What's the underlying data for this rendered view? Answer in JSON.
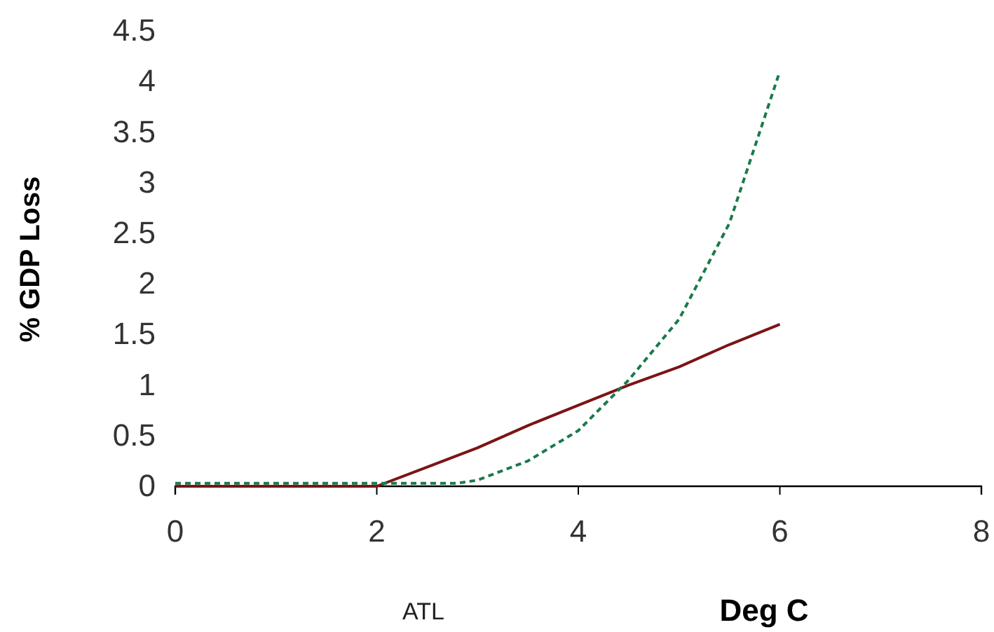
{
  "chart_data": {
    "type": "line",
    "xlabel": "Deg C",
    "ylabel": "% GDP Loss",
    "annotations": [
      "ATL"
    ],
    "xlim": [
      0,
      8
    ],
    "xticks": [
      0,
      2,
      4,
      6,
      8
    ],
    "ylim": [
      0,
      4.5
    ],
    "yticks": [
      0,
      0.5,
      1,
      1.5,
      2,
      2.5,
      3,
      3.5,
      4,
      4.5
    ],
    "grid": false,
    "series": [
      {
        "color": "#7b1416",
        "line_style": "solid",
        "x": [
          0,
          1,
          2,
          2.5,
          3,
          3.5,
          4,
          4.5,
          5,
          5.5,
          6
        ],
        "values": [
          0,
          0,
          0,
          0.19,
          0.38,
          0.6,
          0.8,
          1.0,
          1.18,
          1.4,
          1.6
        ]
      },
      {
        "color": "#1a7a4a",
        "line_style": "dashed",
        "x": [
          0,
          1,
          2,
          2.5,
          2.8,
          3,
          3.5,
          4,
          4.5,
          5,
          5.5,
          6
        ],
        "values": [
          0.03,
          0.03,
          0.03,
          0.03,
          0.03,
          0.06,
          0.25,
          0.55,
          1.05,
          1.65,
          2.6,
          4.1
        ]
      }
    ]
  }
}
